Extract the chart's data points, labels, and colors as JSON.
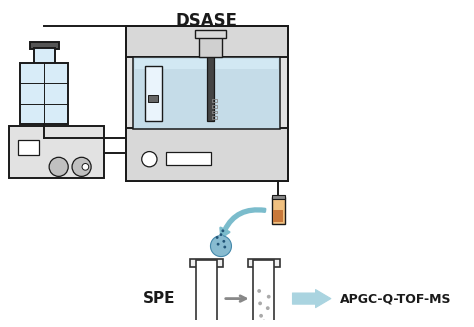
{
  "bg_color": "#ffffff",
  "lc": "#1a1a1a",
  "bottle_fill": "#d8ecf8",
  "water_fill": "#c5dce8",
  "water_light": "#d8eef8",
  "gray_light": "#e2e2e2",
  "gray_med": "#cccccc",
  "gray_dark": "#777777",
  "gray_panel": "#d8d8d8",
  "orange_fill": "#c8783a",
  "orange_light": "#f0c080",
  "arrow_teal": "#7bbccc",
  "drop_blue": "#5599cc",
  "drop_blue2": "#4488bb",
  "dot_dark": "#2a4a6a",
  "dsase_label": "DSASE",
  "spe_label": "SPE",
  "instrument_label": "APGC-Q-TOF-MS"
}
